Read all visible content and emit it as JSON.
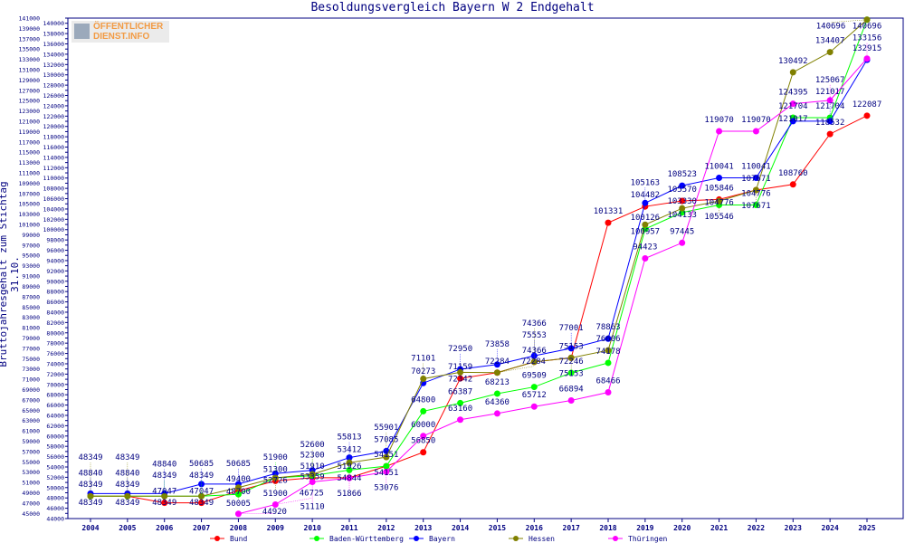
{
  "chart_data": {
    "type": "line",
    "title": "Besoldungsvergleich Bayern W 2 Endgehalt",
    "xlabel": "",
    "ylabel": "Bruttojahresgehalt zum Stichtag 31.10.",
    "ylim": [
      44000,
      141000
    ],
    "ytick_step": 1000,
    "grid": false,
    "legend_position": "bottom",
    "x": [
      "2004",
      "2005",
      "2006",
      "2007",
      "2008",
      "2009",
      "2010",
      "2011",
      "2012",
      "2013",
      "2014",
      "2015",
      "2016",
      "2017",
      "2018",
      "2019",
      "2020",
      "2021",
      "2022",
      "2023",
      "2024",
      "2025"
    ],
    "series": [
      {
        "name": "Bund",
        "color": "#ff0000",
        "values": [
          48349,
          48349,
          47047,
          47047,
          49400,
          51300,
          51910,
          51926,
          54151,
          56850,
          71159,
          72284,
          74366,
          75153,
          101331,
          104482,
          105570,
          105846,
          107671,
          108760,
          118532,
          122087
        ]
      },
      {
        "name": "Baden-Württemberg",
        "color": "#00ff00",
        "values": [
          48349,
          48349,
          48349,
          48349,
          48700,
          51900,
          52300,
          53412,
          54151,
          64800,
          66387,
          68213,
          69509,
          72246,
          74178,
          100126,
          103330,
          104776,
          104776,
          121704,
          121704,
          140696
        ]
      },
      {
        "name": "Bayern",
        "color": "#0000ff",
        "values": [
          48840,
          48840,
          48840,
          50685,
          50685,
          52726,
          53359,
          55813,
          57085,
          70273,
          72950,
          73858,
          75553,
          77001,
          78863,
          105163,
          108523,
          110041,
          110041,
          121017,
          121017,
          132915
        ]
      },
      {
        "name": "Hessen",
        "color": "#808000",
        "values": [
          48349,
          48349,
          48349,
          48349,
          50005,
          51900,
          52600,
          54844,
          55901,
          71101,
          72342,
          72284,
          74366,
          75153,
          76606,
          100957,
          104133,
          105546,
          107671,
          130492,
          134407,
          140696
        ]
      },
      {
        "name": "Thüringen",
        "color": "#ff00ff",
        "values": [
          null,
          null,
          null,
          null,
          44920,
          46725,
          51110,
          51866,
          53076,
          60000,
          63160,
          64360,
          65712,
          66894,
          68466,
          94423,
          97445,
          119070,
          119070,
          124395,
          125067,
          133156
        ]
      }
    ]
  },
  "logo": {
    "line1": "ÖFFENTLICHER",
    "line2": "DIENST.INFO"
  }
}
